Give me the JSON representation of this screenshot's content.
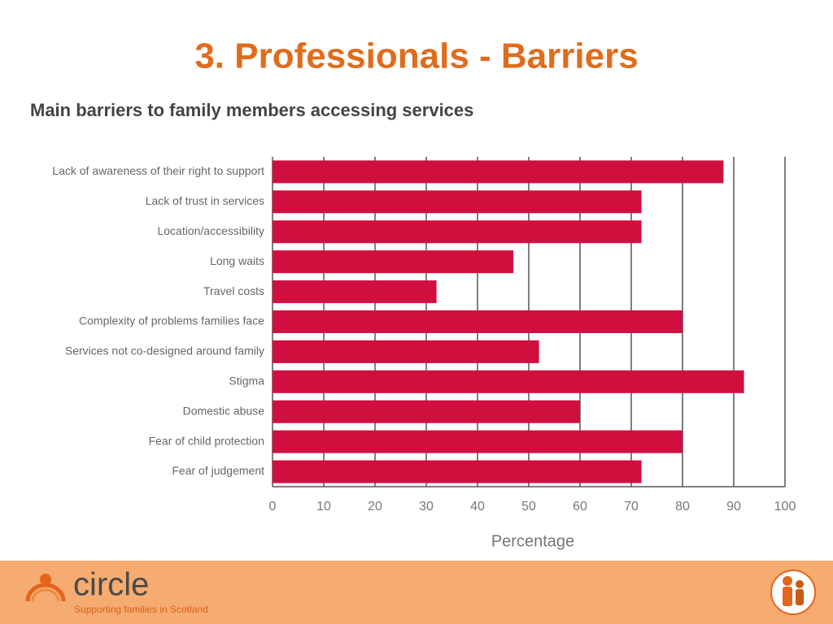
{
  "slide": {
    "title": "3. Professionals - Barriers"
  },
  "chart_data": {
    "type": "barh",
    "title": "Main barriers to family members accessing services",
    "x_label": "Percentage",
    "categories": [
      "Lack of awareness of their right to support",
      "Lack of trust in services",
      "Location/accessibility",
      "Long waits",
      "Travel costs",
      "Complexity of problems families face",
      "Services not co-designed around family",
      "Stigma",
      "Domestic abuse",
      "Fear of child protection",
      "Fear of judgement"
    ],
    "values": [
      88,
      72,
      72,
      47,
      32,
      80,
      52,
      92,
      60,
      80,
      72
    ],
    "color": "#d10f3f",
    "xlim": [
      0,
      100
    ],
    "xticks": [
      0,
      10,
      20,
      30,
      40,
      50,
      60,
      70,
      80,
      90,
      100
    ],
    "grid": true
  },
  "footer": {
    "logo_text": "circle",
    "tagline": "Supporting families in Scotland"
  }
}
